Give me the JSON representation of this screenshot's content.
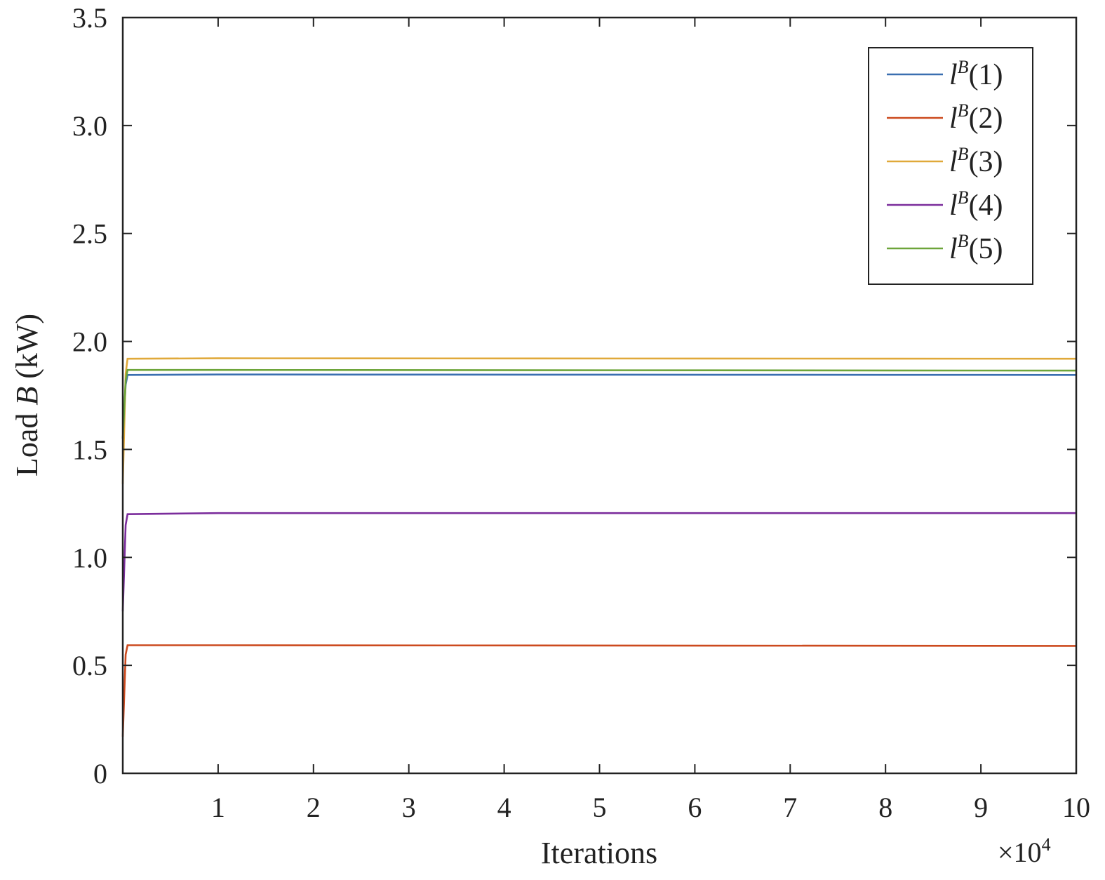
{
  "chart_data": {
    "type": "line",
    "xlabel": "Iterations",
    "ylabel_prefix": "Load ",
    "ylabel_var": "B",
    "ylabel_suffix": " (kW)",
    "x_multiplier_label": "×10",
    "x_multiplier_exp": "4",
    "xlim": [
      0,
      10
    ],
    "ylim": [
      0,
      3.5
    ],
    "x_ticks": [
      1,
      2,
      3,
      4,
      5,
      6,
      7,
      8,
      9,
      10
    ],
    "x_tick_labels": [
      "1",
      "2",
      "3",
      "4",
      "5",
      "6",
      "7",
      "8",
      "9",
      "10"
    ],
    "y_ticks": [
      0,
      0.5,
      1.0,
      1.5,
      2.0,
      2.5,
      3.0,
      3.5
    ],
    "y_tick_labels": [
      "0",
      "0.5",
      "1.0",
      "1.5",
      "2.0",
      "2.5",
      "3.0",
      "3.5"
    ],
    "grid": false,
    "legend_position": "top-right",
    "series": [
      {
        "name_base": "l",
        "name_sup": "B",
        "name_arg": "(1)",
        "color": "#3a6fb0",
        "points": [
          [
            0,
            1.55
          ],
          [
            0.03,
            1.8
          ],
          [
            0.05,
            1.845
          ],
          [
            1,
            1.847
          ],
          [
            10,
            1.845
          ]
        ]
      },
      {
        "name_base": "l",
        "name_sup": "B",
        "name_arg": "(2)",
        "color": "#cc4a1e",
        "points": [
          [
            0,
            0.17
          ],
          [
            0.03,
            0.55
          ],
          [
            0.05,
            0.593
          ],
          [
            1,
            0.593
          ],
          [
            10,
            0.59
          ]
        ]
      },
      {
        "name_base": "l",
        "name_sup": "B",
        "name_arg": "(3)",
        "color": "#e0a93a",
        "points": [
          [
            0,
            1.34
          ],
          [
            0.03,
            1.85
          ],
          [
            0.05,
            1.92
          ],
          [
            1,
            1.922
          ],
          [
            10,
            1.92
          ]
        ]
      },
      {
        "name_base": "l",
        "name_sup": "B",
        "name_arg": "(4)",
        "color": "#7b2d9c",
        "points": [
          [
            0,
            0.75
          ],
          [
            0.03,
            1.15
          ],
          [
            0.05,
            1.2
          ],
          [
            1,
            1.205
          ],
          [
            10,
            1.205
          ]
        ]
      },
      {
        "name_base": "l",
        "name_sup": "B",
        "name_arg": "(5)",
        "color": "#6da53a",
        "points": [
          [
            0,
            1.55
          ],
          [
            0.03,
            1.82
          ],
          [
            0.05,
            1.868
          ],
          [
            1,
            1.868
          ],
          [
            10,
            1.865
          ]
        ]
      }
    ]
  }
}
